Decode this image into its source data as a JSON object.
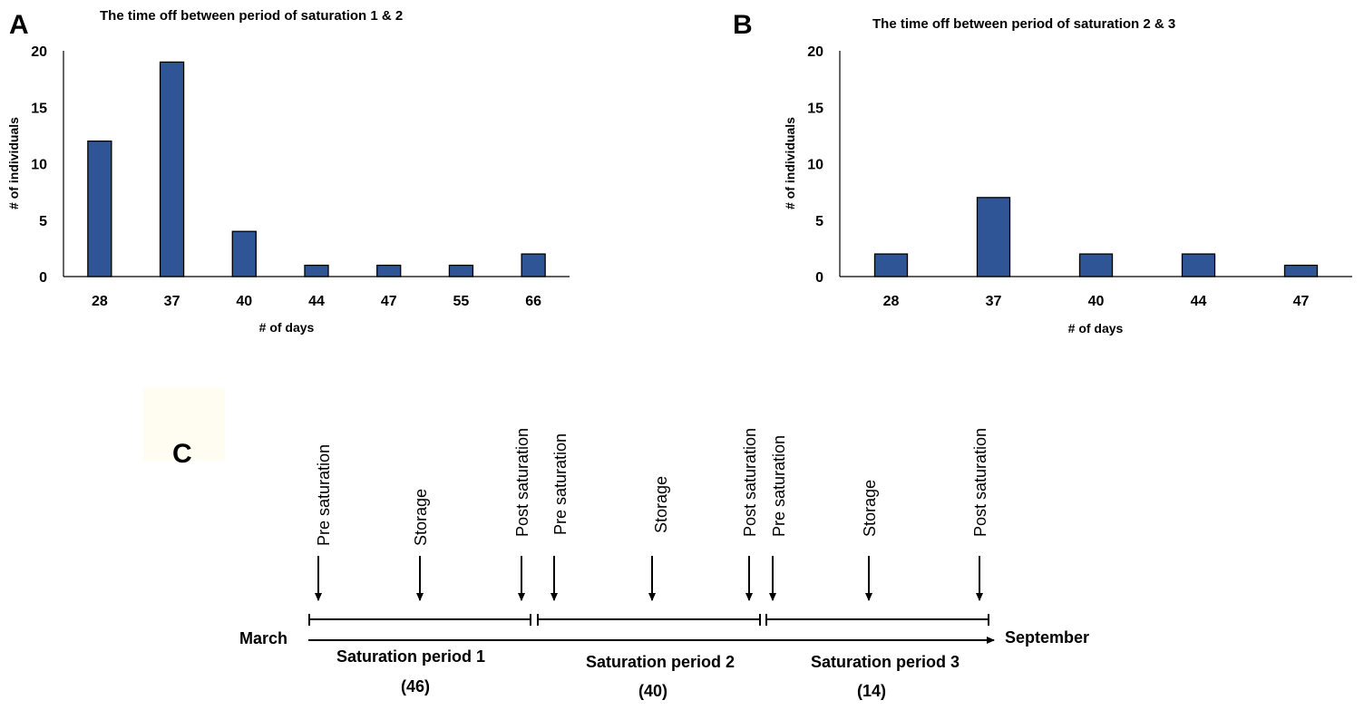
{
  "chart_data": [
    {
      "panel": "A",
      "type": "bar",
      "title": "The time off between period of saturation 1 & 2",
      "categories": [
        "28",
        "37",
        "40",
        "44",
        "47",
        "55",
        "66"
      ],
      "values": [
        12,
        19,
        4,
        1,
        1,
        1,
        2
      ],
      "xlabel": "# of days",
      "ylabel": "# of individuals",
      "ylim": [
        0,
        20
      ],
      "yticks": [
        "0",
        "5",
        "10",
        "15",
        "20"
      ],
      "bar_color": "#2f5597",
      "grid": false
    },
    {
      "panel": "B",
      "type": "bar",
      "title": "The time off between period of saturation 2 & 3",
      "categories": [
        "28",
        "37",
        "40",
        "44",
        "47"
      ],
      "values": [
        2,
        7,
        2,
        2,
        1
      ],
      "xlabel": "# of days",
      "ylabel": "# of individuals",
      "ylim": [
        0,
        20
      ],
      "yticks": [
        "0",
        "5",
        "10",
        "15",
        "20"
      ],
      "bar_color": "#2f5597",
      "grid": false
    }
  ],
  "timeline": {
    "panel": "C",
    "start_label": "March",
    "end_label": "September",
    "periods": [
      {
        "name": "Saturation period 1",
        "duration": "(46)",
        "events": [
          "Pre saturation",
          "Storage",
          "Post saturation"
        ]
      },
      {
        "name": "Saturation period 2",
        "duration": "(40)",
        "events": [
          "Pre saturation",
          "Storage",
          "Post saturation"
        ]
      },
      {
        "name": "Saturation period 3",
        "duration": "(14)",
        "events": [
          "Pre saturation",
          "Storage",
          "Post saturation"
        ]
      }
    ]
  }
}
